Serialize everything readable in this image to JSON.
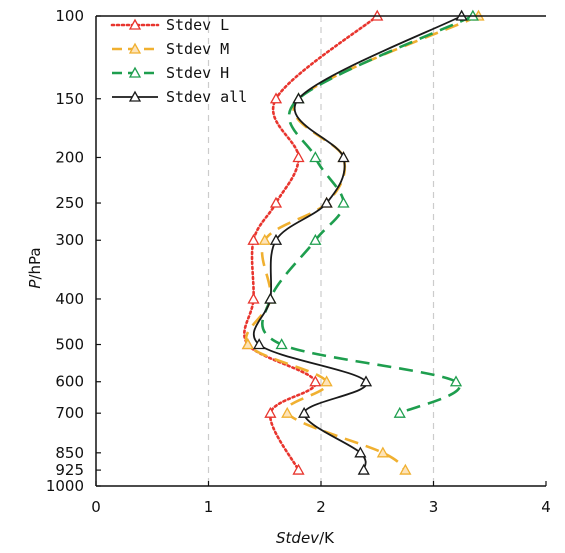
{
  "chart_data": {
    "type": "line",
    "title": "",
    "xlabel_italic": "Stdev",
    "xlabel_unit": "/K",
    "ylabel_italic": "P",
    "ylabel_unit": "/hPa",
    "xlim": [
      0,
      4
    ],
    "ylim": [
      100,
      1000
    ],
    "y_scale": "log",
    "y_inverted": true,
    "x_ticks": [
      "0",
      "1",
      "2",
      "3",
      "4"
    ],
    "y_ticks": [
      "100",
      "150",
      "200",
      "250",
      "300",
      "400",
      "500",
      "600",
      "700",
      "850",
      "925",
      "1000"
    ],
    "grid": "vertical dashed at x = 1, 2, 3",
    "legend_position": "top-left",
    "series": [
      {
        "name": "Stdev L",
        "color": "#e8352e",
        "style": "dotted",
        "marker": "triangle-up",
        "x": [
          2.5,
          1.6,
          1.8,
          1.6,
          1.4,
          1.4,
          1.35,
          1.95,
          1.55,
          1.8
        ],
        "y": [
          100,
          150,
          200,
          250,
          300,
          400,
          500,
          600,
          700,
          925
        ]
      },
      {
        "name": "Stdev M",
        "color": "#f0b030",
        "style": "dashed",
        "marker": "triangle-up",
        "x": [
          3.4,
          1.8,
          2.2,
          2.05,
          1.5,
          1.55,
          1.35,
          2.05,
          1.7,
          2.55,
          2.75
        ],
        "y": [
          100,
          150,
          200,
          250,
          300,
          400,
          500,
          600,
          700,
          850,
          925
        ]
      },
      {
        "name": "Stdev H",
        "color": "#1e9e4e",
        "style": "dashed",
        "marker": "triangle-up",
        "x": [
          3.35,
          1.8,
          1.95,
          2.2,
          1.95,
          1.55,
          1.65,
          3.2,
          2.7
        ],
        "y": [
          100,
          150,
          200,
          250,
          300,
          400,
          500,
          600,
          700
        ]
      },
      {
        "name": "Stdev all",
        "color": "#1a1a1a",
        "style": "solid",
        "marker": "triangle-up",
        "x": [
          3.25,
          1.8,
          2.2,
          2.05,
          1.6,
          1.55,
          1.45,
          2.4,
          1.85,
          2.35,
          2.38
        ],
        "y": [
          100,
          150,
          200,
          250,
          300,
          400,
          500,
          600,
          700,
          850,
          925
        ]
      }
    ]
  }
}
